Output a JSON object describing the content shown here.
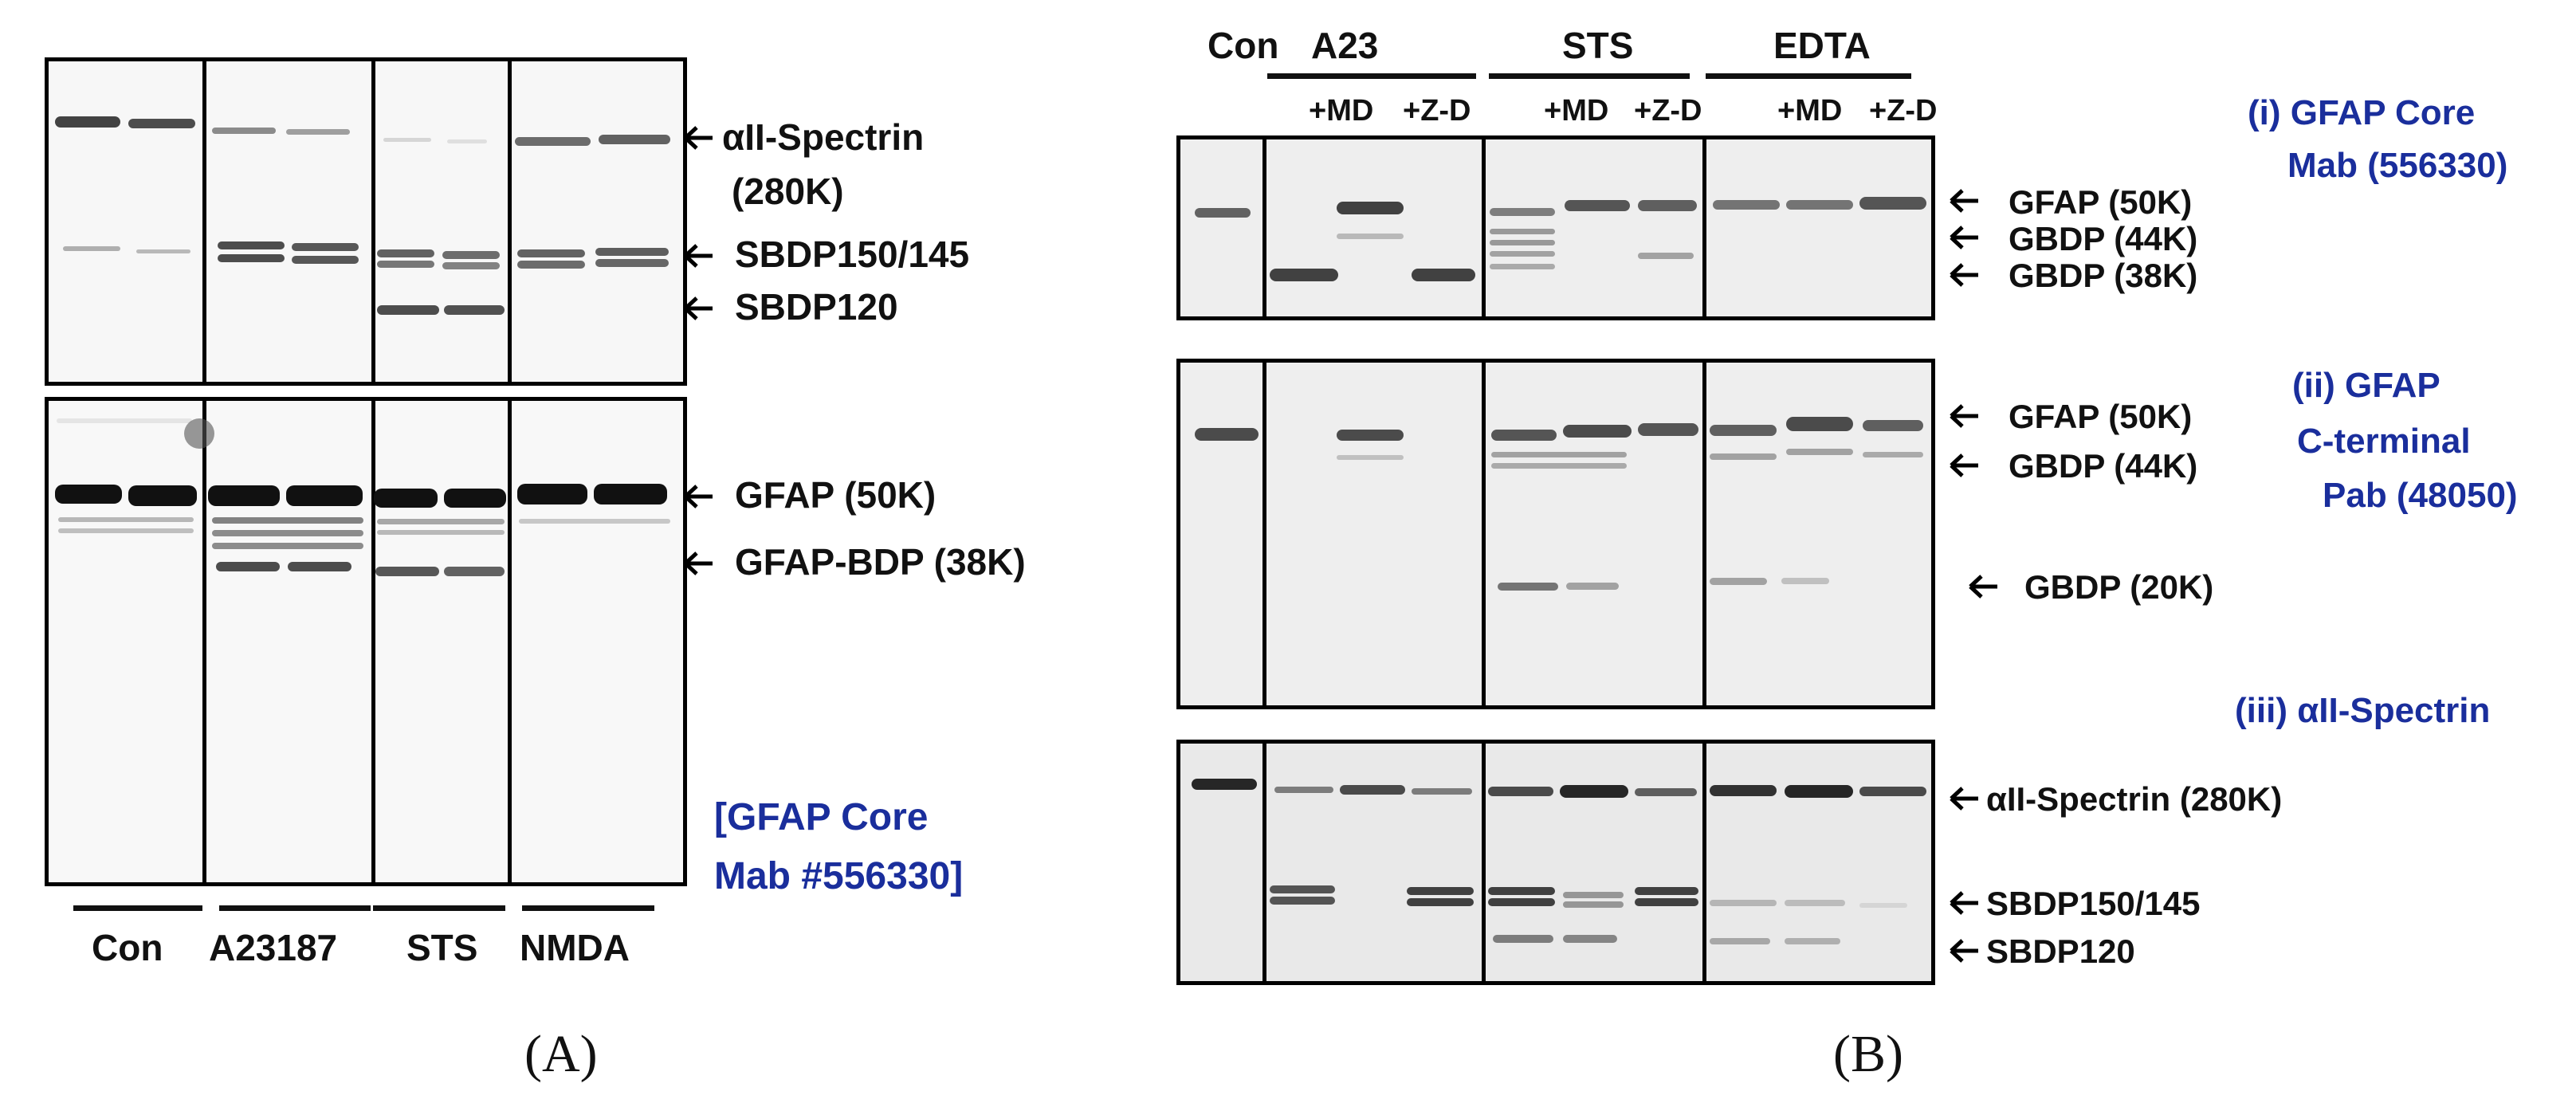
{
  "panel_a": {
    "panel_letter": "(A)",
    "top_labels": [
      {
        "text": "αII-Spectrin",
        "sub": "(280K)"
      },
      {
        "text": "SBDP150/145"
      },
      {
        "text": "SBDP120"
      }
    ],
    "bottom_labels": [
      {
        "text": "GFAP (50K)"
      },
      {
        "text": "GFAP-BDP (38K)"
      }
    ],
    "antibody": [
      "[GFAP Core",
      "Mab #556330]"
    ],
    "groups": [
      "Con",
      "A23187",
      "STS",
      "NMDA"
    ]
  },
  "panel_b": {
    "panel_letter": "(B)",
    "top_groups": [
      "Con",
      "A23",
      "STS",
      "EDTA"
    ],
    "treatments": [
      "+MD",
      "+Z-D",
      "+MD",
      "+Z-D",
      "+MD",
      "+Z-D"
    ],
    "blot_i_labels": [
      "GFAP (50K)",
      "GBDP (44K)",
      "GBDP (38K)"
    ],
    "blot_ii_labels": [
      "GFAP (50K)",
      "GBDP (44K)",
      "GBDP (20K)"
    ],
    "blot_iii_labels": [
      "αII-Spectrin (280K)",
      "SBDP150/145",
      "SBDP120"
    ],
    "antibody_i": [
      "(i) GFAP Core",
      "Mab (556330)"
    ],
    "antibody_ii": [
      "(ii) GFAP",
      "C-terminal",
      "Pab  (48050)"
    ],
    "antibody_iii": "(iii) αII-Spectrin"
  }
}
